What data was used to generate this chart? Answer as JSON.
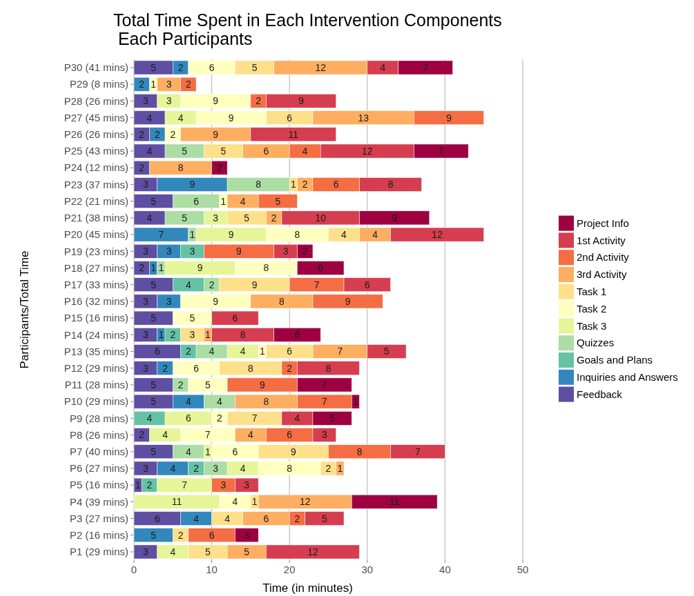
{
  "chart_data": {
    "type": "bar",
    "orientation": "horizontal",
    "stacked": true,
    "title": "Total Time Spent in Each Intervention Components\n Each Participants",
    "xlabel": "Time (in minutes)",
    "ylabel": "Participants/Total Time",
    "categories": [
      "P30 (41 mins)",
      "P29 (8 mins)",
      "P28 (26 mins)",
      "P27 (45 mins)",
      "P26 (26 mins)",
      "P25 (43 mins)",
      "P24 (12 mins)",
      "P23 (37 mins)",
      "P22 (21 mins)",
      "P21 (38 mins)",
      "P20 (45 mins)",
      "P19 (23 mins)",
      "P18 (27 mins)",
      "P17 (33 mins)",
      "P16 (32 mins)",
      "P15 (16 mins)",
      "P14 (24 mins)",
      "P13 (35 mins)",
      "P12 (29 mins)",
      "P11 (28 mins)",
      "P10 (29 mins)",
      "P9 (28 mins)",
      "P8 (26 mins)",
      "P7 (40 mins)",
      "P6 (27 mins)",
      "P5 (16 mins)",
      "P4 (39 mins)",
      "P3 (27 mins)",
      "P2 (16 mins)",
      "P1 (29 mins)"
    ],
    "xlim": [
      0,
      50
    ],
    "xticks": [
      0,
      10,
      20,
      30,
      40,
      50
    ],
    "grid": "x",
    "legend": "right",
    "data_labels": true,
    "series": [
      {
        "name": "Feedback",
        "color": "#5e4fa2",
        "values": [
          5,
          null,
          3,
          4,
          2,
          4,
          2,
          3,
          5,
          4,
          null,
          3,
          2,
          5,
          3,
          5,
          3,
          6,
          3,
          5,
          5,
          null,
          2,
          5,
          3,
          1,
          null,
          6,
          null,
          3
        ]
      },
      {
        "name": "Inquiries and Answers",
        "color": "#3288bd",
        "values": [
          2,
          2,
          null,
          null,
          2,
          null,
          null,
          9,
          null,
          null,
          7,
          3,
          1,
          null,
          3,
          null,
          1,
          null,
          2,
          null,
          4,
          null,
          null,
          null,
          4,
          null,
          null,
          4,
          5,
          null
        ]
      },
      {
        "name": "Goals and Plans",
        "color": "#66c2a5",
        "values": [
          null,
          null,
          null,
          null,
          null,
          null,
          null,
          null,
          null,
          null,
          null,
          3,
          null,
          4,
          null,
          null,
          2,
          2,
          null,
          null,
          null,
          4,
          null,
          null,
          2,
          2,
          null,
          null,
          null,
          null
        ]
      },
      {
        "name": "Quizzes",
        "color": "#abdda4",
        "values": [
          null,
          null,
          null,
          null,
          null,
          5,
          null,
          8,
          6,
          5,
          1,
          null,
          1,
          2,
          null,
          null,
          null,
          4,
          null,
          2,
          4,
          null,
          null,
          4,
          3,
          null,
          null,
          null,
          null,
          null
        ]
      },
      {
        "name": "Task 3",
        "color": "#e6f598",
        "values": [
          null,
          null,
          3,
          4,
          null,
          null,
          null,
          null,
          null,
          3,
          9,
          null,
          9,
          null,
          null,
          null,
          null,
          4,
          null,
          null,
          null,
          6,
          4,
          1,
          4,
          7,
          11,
          null,
          null,
          4
        ]
      },
      {
        "name": "Task 2",
        "color": "#ffffbf",
        "values": [
          6,
          1,
          9,
          9,
          2,
          null,
          null,
          null,
          1,
          null,
          8,
          null,
          8,
          null,
          9,
          5,
          null,
          1,
          6,
          5,
          null,
          2,
          7,
          6,
          8,
          null,
          4,
          null,
          null,
          null
        ]
      },
      {
        "name": "Task 1",
        "color": "#fee08b",
        "values": [
          5,
          null,
          null,
          6,
          null,
          5,
          null,
          1,
          null,
          5,
          4,
          null,
          null,
          9,
          null,
          null,
          3,
          6,
          8,
          null,
          null,
          7,
          null,
          9,
          2,
          null,
          1,
          4,
          2,
          5
        ]
      },
      {
        "name": "3rd Activity",
        "color": "#fdae61",
        "values": [
          12,
          3,
          null,
          13,
          9,
          6,
          8,
          2,
          4,
          2,
          4,
          null,
          null,
          null,
          8,
          null,
          1,
          7,
          null,
          null,
          8,
          null,
          4,
          null,
          1,
          null,
          12,
          6,
          null,
          5
        ]
      },
      {
        "name": "2nd Activity",
        "color": "#f46d43",
        "values": [
          null,
          2,
          2,
          9,
          null,
          4,
          null,
          6,
          5,
          null,
          null,
          9,
          null,
          7,
          9,
          null,
          null,
          null,
          2,
          9,
          7,
          null,
          6,
          8,
          null,
          3,
          null,
          2,
          6,
          null
        ]
      },
      {
        "name": "1st Activity",
        "color": "#d53e4f",
        "values": [
          4,
          null,
          9,
          null,
          11,
          12,
          null,
          8,
          null,
          10,
          12,
          3,
          null,
          6,
          null,
          6,
          8,
          5,
          8,
          null,
          null,
          4,
          3,
          7,
          null,
          3,
          null,
          5,
          null,
          12
        ]
      },
      {
        "name": "Project Info",
        "color": "#9e0142",
        "values": [
          7,
          null,
          null,
          null,
          null,
          7,
          2,
          null,
          null,
          9,
          null,
          2,
          6,
          null,
          null,
          null,
          6,
          null,
          null,
          7,
          1,
          5,
          null,
          null,
          null,
          null,
          11,
          null,
          3,
          null
        ]
      }
    ]
  }
}
